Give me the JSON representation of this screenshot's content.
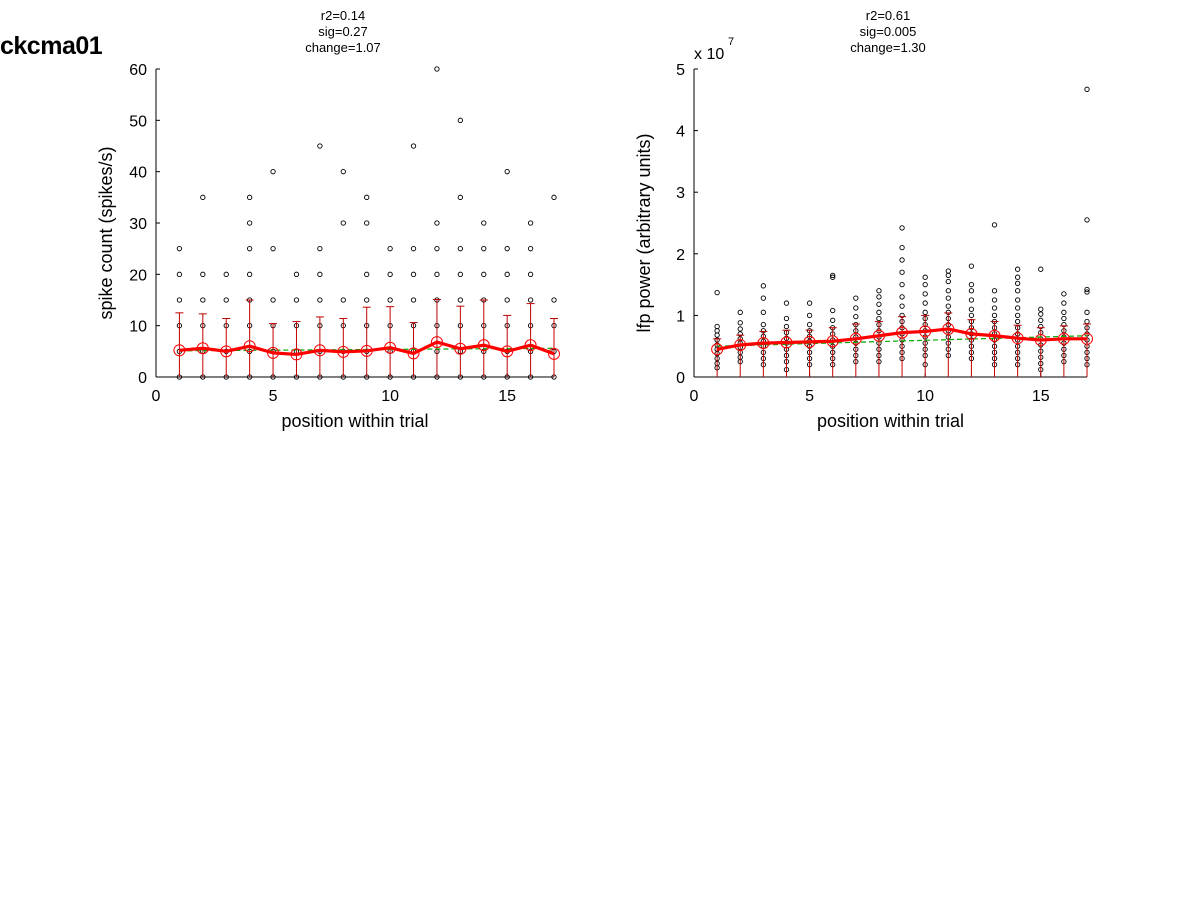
{
  "figure": {
    "label": "ckcma01"
  },
  "chart_data": [
    {
      "type": "scatter",
      "stats": [
        "r2=0.14",
        "sig=0.27",
        "change=1.07"
      ],
      "xlabel": "position within trial",
      "ylabel": "spike count (spikes/s)",
      "xlim": [
        0,
        17
      ],
      "ylim": [
        0,
        60
      ],
      "xticks": [
        0,
        5,
        10,
        15
      ],
      "yticks": [
        0,
        10,
        20,
        30,
        40,
        50,
        60
      ],
      "colors": {
        "raw": "#000000",
        "mean": "#ff0000",
        "errorbar": "#c00000",
        "fit": "#00aa00"
      },
      "raw_points": [
        {
          "x": 1,
          "y": [
            0,
            5,
            10,
            15,
            20,
            25
          ]
        },
        {
          "x": 2,
          "y": [
            0,
            5,
            10,
            15,
            20,
            35
          ]
        },
        {
          "x": 3,
          "y": [
            0,
            5,
            10,
            15,
            20
          ]
        },
        {
          "x": 4,
          "y": [
            0,
            5,
            10,
            15,
            20,
            25,
            30,
            35
          ]
        },
        {
          "x": 5,
          "y": [
            0,
            5,
            10,
            15,
            25,
            40
          ]
        },
        {
          "x": 6,
          "y": [
            0,
            5,
            10,
            15,
            20
          ]
        },
        {
          "x": 7,
          "y": [
            0,
            5,
            10,
            15,
            20,
            25,
            45
          ]
        },
        {
          "x": 8,
          "y": [
            0,
            5,
            10,
            15,
            30,
            40
          ]
        },
        {
          "x": 9,
          "y": [
            0,
            5,
            10,
            15,
            20,
            30,
            35
          ]
        },
        {
          "x": 10,
          "y": [
            0,
            5,
            10,
            15,
            20,
            25
          ]
        },
        {
          "x": 11,
          "y": [
            0,
            5,
            10,
            15,
            20,
            25,
            45
          ]
        },
        {
          "x": 12,
          "y": [
            0,
            5,
            10,
            15,
            20,
            25,
            30,
            60
          ]
        },
        {
          "x": 13,
          "y": [
            0,
            5,
            10,
            15,
            20,
            25,
            35,
            50
          ]
        },
        {
          "x": 14,
          "y": [
            0,
            5,
            10,
            15,
            20,
            25,
            30
          ]
        },
        {
          "x": 15,
          "y": [
            0,
            5,
            10,
            15,
            20,
            25,
            40
          ]
        },
        {
          "x": 16,
          "y": [
            0,
            5,
            10,
            15,
            20,
            25,
            30
          ]
        },
        {
          "x": 17,
          "y": [
            0,
            5,
            10,
            15,
            35
          ]
        }
      ],
      "mean": {
        "x": [
          1,
          2,
          3,
          4,
          5,
          6,
          7,
          8,
          9,
          10,
          11,
          12,
          13,
          14,
          15,
          16,
          17
        ],
        "y": [
          5.2,
          5.6,
          5.0,
          6.0,
          4.7,
          4.4,
          5.2,
          4.9,
          5.1,
          5.7,
          4.6,
          6.8,
          5.5,
          6.2,
          5.0,
          6.2,
          4.5
        ]
      },
      "error_upper": [
        12.5,
        12.3,
        11.4,
        15.0,
        10.4,
        10.8,
        11.7,
        11.4,
        13.6,
        13.7,
        10.6,
        15.1,
        13.8,
        15.0,
        12.0,
        14.3,
        11.4
      ],
      "fit": {
        "x": [
          1,
          17
        ],
        "y": [
          5.1,
          5.6
        ]
      }
    },
    {
      "type": "scatter",
      "stats": [
        "r2=0.61",
        "sig=0.005",
        "change=1.30"
      ],
      "xlabel": "position within trial",
      "ylabel": "lfp power (arbitrary units)",
      "scale_note": "x 10",
      "scale_exponent": "7",
      "xlim": [
        0,
        17
      ],
      "ylim": [
        0,
        5
      ],
      "xticks": [
        0,
        5,
        10,
        15
      ],
      "yticks": [
        0,
        1,
        2,
        3,
        4,
        5
      ],
      "colors": {
        "raw": "#000000",
        "mean": "#ff0000",
        "errorbar": "#c00000",
        "fit": "#00aa00"
      },
      "raw_points": [
        {
          "x": 1,
          "y": [
            0.15,
            0.22,
            0.3,
            0.38,
            0.45,
            0.52,
            0.6,
            0.68,
            0.75,
            0.82,
            1.37
          ]
        },
        {
          "x": 2,
          "y": [
            0.25,
            0.32,
            0.4,
            0.48,
            0.55,
            0.62,
            0.7,
            0.78,
            0.88,
            1.05
          ]
        },
        {
          "x": 3,
          "y": [
            0.2,
            0.3,
            0.4,
            0.5,
            0.58,
            0.66,
            0.75,
            0.85,
            1.05,
            1.28,
            1.48
          ]
        },
        {
          "x": 4,
          "y": [
            0.12,
            0.25,
            0.35,
            0.45,
            0.55,
            0.63,
            0.72,
            0.82,
            0.95,
            1.2
          ]
        },
        {
          "x": 5,
          "y": [
            0.2,
            0.3,
            0.4,
            0.5,
            0.58,
            0.66,
            0.75,
            0.85,
            1.0,
            1.2
          ]
        },
        {
          "x": 6,
          "y": [
            0.2,
            0.3,
            0.4,
            0.5,
            0.6,
            0.7,
            0.8,
            0.92,
            1.08,
            1.62,
            1.65
          ]
        },
        {
          "x": 7,
          "y": [
            0.25,
            0.35,
            0.45,
            0.55,
            0.65,
            0.75,
            0.85,
            0.98,
            1.12,
            1.28
          ]
        },
        {
          "x": 8,
          "y": [
            0.25,
            0.35,
            0.45,
            0.55,
            0.65,
            0.75,
            0.85,
            0.95,
            1.05,
            1.18,
            1.3,
            1.4
          ]
        },
        {
          "x": 9,
          "y": [
            0.3,
            0.4,
            0.5,
            0.6,
            0.7,
            0.8,
            0.9,
            1.0,
            1.15,
            1.3,
            1.5,
            1.7,
            1.9,
            2.1,
            2.42
          ]
        },
        {
          "x": 10,
          "y": [
            0.2,
            0.35,
            0.45,
            0.55,
            0.65,
            0.75,
            0.85,
            0.95,
            1.05,
            1.2,
            1.35,
            1.5,
            1.62
          ]
        },
        {
          "x": 11,
          "y": [
            0.35,
            0.45,
            0.55,
            0.65,
            0.75,
            0.85,
            0.95,
            1.05,
            1.15,
            1.28,
            1.4,
            1.55,
            1.65,
            1.72
          ]
        },
        {
          "x": 12,
          "y": [
            0.3,
            0.4,
            0.5,
            0.6,
            0.7,
            0.8,
            0.9,
            1.0,
            1.1,
            1.25,
            1.4,
            1.5,
            1.8
          ]
        },
        {
          "x": 13,
          "y": [
            0.2,
            0.3,
            0.4,
            0.5,
            0.6,
            0.7,
            0.8,
            0.9,
            1.0,
            1.12,
            1.25,
            1.4,
            2.47
          ]
        },
        {
          "x": 14,
          "y": [
            0.2,
            0.3,
            0.4,
            0.5,
            0.6,
            0.7,
            0.8,
            0.9,
            1.0,
            1.12,
            1.25,
            1.4,
            1.52,
            1.62,
            1.75
          ]
        },
        {
          "x": 15,
          "y": [
            0.12,
            0.22,
            0.32,
            0.42,
            0.52,
            0.62,
            0.72,
            0.82,
            0.92,
            1.02,
            1.1,
            1.75
          ]
        },
        {
          "x": 16,
          "y": [
            0.25,
            0.35,
            0.45,
            0.55,
            0.65,
            0.75,
            0.85,
            0.95,
            1.05,
            1.2,
            1.35
          ]
        },
        {
          "x": 17,
          "y": [
            0.2,
            0.3,
            0.4,
            0.5,
            0.6,
            0.7,
            0.8,
            0.9,
            1.05,
            1.38,
            1.42,
            2.55,
            4.67
          ]
        }
      ],
      "mean": {
        "x": [
          1,
          2,
          3,
          4,
          5,
          6,
          7,
          8,
          9,
          10,
          11,
          12,
          13,
          14,
          15,
          16,
          17
        ],
        "y": [
          0.45,
          0.52,
          0.55,
          0.56,
          0.57,
          0.58,
          0.62,
          0.67,
          0.72,
          0.74,
          0.78,
          0.7,
          0.67,
          0.63,
          0.6,
          0.62,
          0.62
        ]
      },
      "error_upper": [
        0.62,
        0.68,
        0.74,
        0.76,
        0.76,
        0.8,
        0.86,
        0.9,
        0.98,
        1.0,
        1.04,
        0.93,
        0.9,
        0.84,
        0.8,
        0.83,
        0.86
      ],
      "fit": {
        "x": [
          1,
          17
        ],
        "y": [
          0.5,
          0.67
        ]
      }
    }
  ]
}
